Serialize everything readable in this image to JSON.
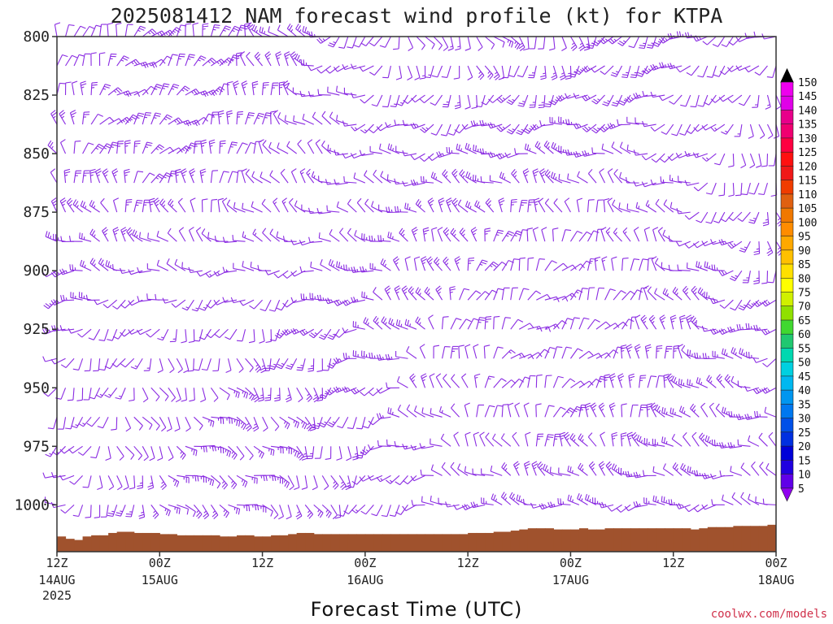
{
  "title": "2025081412 NAM forecast wind profile (kt) for KTPA",
  "xlabel": "Forecast Time (UTC)",
  "credit": "coolwx.com/models",
  "colors": {
    "barb": "#8a2be2",
    "ground": "#a0522d",
    "axis": "#333333"
  },
  "chart_data": {
    "type": "wind-barb-profile",
    "title": "2025081412 NAM forecast wind profile (kt) for KTPA",
    "xlabel": "Forecast Time (UTC)",
    "ylabel": "",
    "x_range_hours": [
      0,
      84
    ],
    "x_step_hours": 1,
    "y_range_hpa": [
      800,
      1020
    ],
    "y_step_hpa": 12.5,
    "y_ticks": [
      "800",
      "825",
      "850",
      "875",
      "900",
      "925",
      "950",
      "975",
      "1000"
    ],
    "x_ticks": [
      {
        "line1": "12Z",
        "line2": "14AUG",
        "line3": "2025"
      },
      {
        "line1": "00Z",
        "line2": "15AUG",
        "line3": ""
      },
      {
        "line1": "12Z",
        "line2": "",
        "line3": ""
      },
      {
        "line1": "00Z",
        "line2": "16AUG",
        "line3": ""
      },
      {
        "line1": "12Z",
        "line2": "",
        "line3": ""
      },
      {
        "line1": "00Z",
        "line2": "17AUG",
        "line3": ""
      },
      {
        "line1": "12Z",
        "line2": "",
        "line3": ""
      },
      {
        "line1": "00Z",
        "line2": "18AUG",
        "line3": ""
      }
    ],
    "colorbar": {
      "levels": [
        "150",
        "145",
        "140",
        "135",
        "130",
        "125",
        "120",
        "115",
        "110",
        "105",
        "100",
        "95",
        "90",
        "85",
        "80",
        "75",
        "70",
        "65",
        "60",
        "55",
        "50",
        "45",
        "40",
        "35",
        "30",
        "25",
        "20",
        "15",
        "10",
        "5"
      ],
      "colors": [
        "#ee00ee",
        "#e000e8",
        "#e8008a",
        "#f00070",
        "#ff0040",
        "#ff1010",
        "#f01818",
        "#f03c00",
        "#e06010",
        "#f07800",
        "#ff8c00",
        "#ffa800",
        "#ffc000",
        "#ffe000",
        "#ffff00",
        "#d0f000",
        "#90e000",
        "#40d830",
        "#20c870",
        "#00d8b0",
        "#00d0e0",
        "#00b8f0",
        "#0096f0",
        "#0078f0",
        "#0050e8",
        "#0030e0",
        "#0000d8",
        "#2000e0",
        "#6000e8",
        "#9000f0"
      ]
    },
    "ground_pressure_hpa": [
      1013.5,
      1014.5,
      1015,
      1013.5,
      1013,
      1013,
      1012,
      1011.5,
      1011.5,
      1012,
      1012,
      1012,
      1012.5,
      1012.5,
      1013,
      1013,
      1013,
      1013,
      1013,
      1013.5,
      1013.5,
      1013,
      1013,
      1013.5,
      1013.5,
      1013,
      1013,
      1012.5,
      1012,
      1012,
      1012.5,
      1012.5,
      1012.5,
      1012.5,
      1012.5,
      1012.5,
      1012.5,
      1012.5,
      1012.5,
      1012.5,
      1012.5,
      1012.5,
      1012.5,
      1012.5,
      1012.5,
      1012.5,
      1012.5,
      1012.5,
      1012,
      1012,
      1012,
      1011.5,
      1011.5,
      1011,
      1010.5,
      1010,
      1010,
      1010,
      1010.5,
      1010.5,
      1010.5,
      1010,
      1010.5,
      1010.5,
      1010,
      1010,
      1010,
      1010,
      1010,
      1010,
      1010,
      1010,
      1010,
      1010,
      1010.5,
      1010,
      1009.5,
      1009.5,
      1009.5,
      1009,
      1009,
      1009,
      1009,
      1008.5,
      1008.5
    ]
  }
}
